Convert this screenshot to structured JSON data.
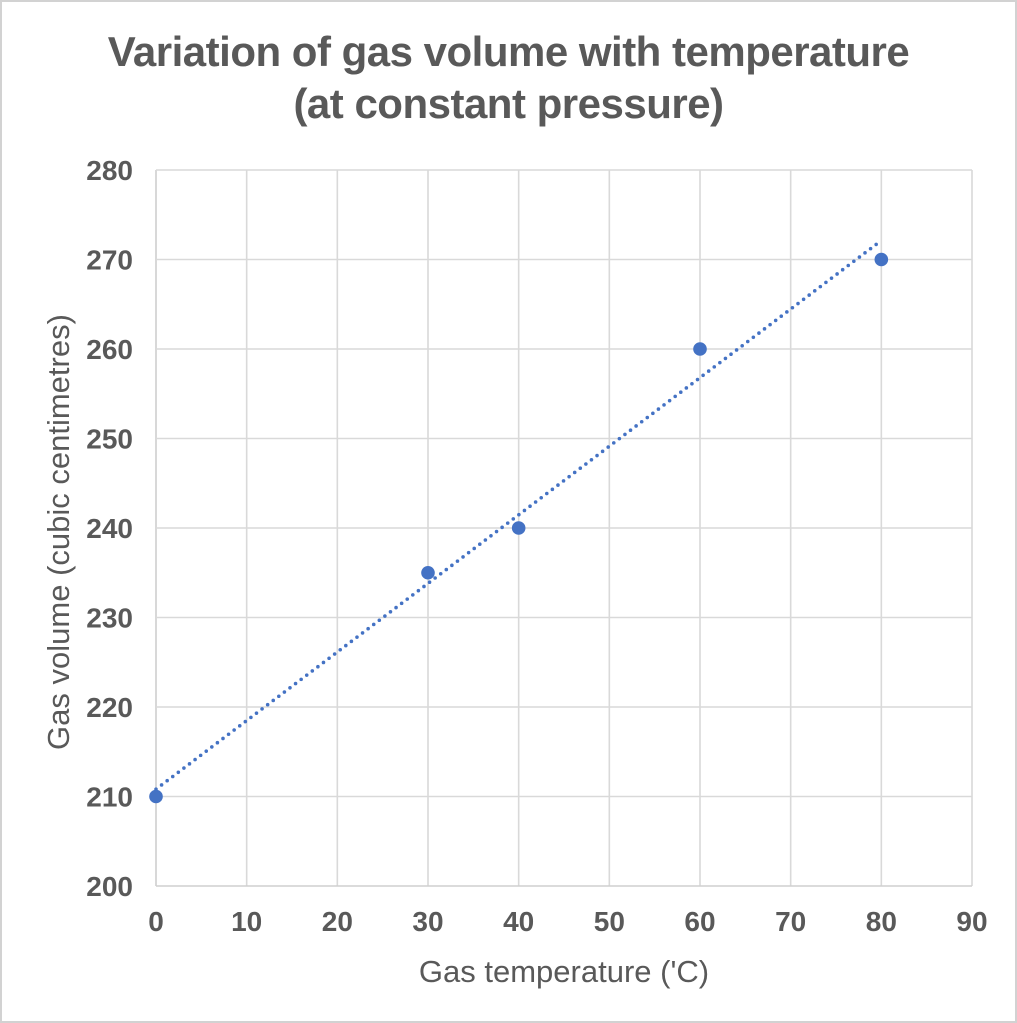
{
  "chart": {
    "title_line1": "Variation of gas volume with temperature",
    "title_line2": "(at constant pressure)"
  },
  "chart_data": {
    "type": "scatter",
    "title": "Variation of gas volume with temperature (at constant pressure)",
    "xlabel": "Gas temperature ('C)",
    "ylabel": "Gas volume (cubic centimetres)",
    "points": [
      {
        "x": 0,
        "y": 210
      },
      {
        "x": 30,
        "y": 235
      },
      {
        "x": 40,
        "y": 240
      },
      {
        "x": 60,
        "y": 260
      },
      {
        "x": 80,
        "y": 270
      }
    ],
    "trendline": {
      "style": "dotted",
      "x_start": 0,
      "x_end": 80,
      "slope": 0.7663,
      "intercept": 210.82
    },
    "xlim": [
      0,
      90
    ],
    "ylim": [
      200,
      280
    ],
    "x_ticks": [
      0,
      10,
      20,
      30,
      40,
      50,
      60,
      70,
      80,
      90
    ],
    "y_ticks": [
      200,
      210,
      220,
      230,
      240,
      250,
      260,
      270,
      280
    ],
    "grid": true,
    "legend": "none",
    "marker_color": "#4472C4",
    "trendline_color": "#4472C4",
    "gridline_color": "#D9D9D9",
    "axisline_color": "#CFCFCF",
    "text_color": "#595959"
  }
}
